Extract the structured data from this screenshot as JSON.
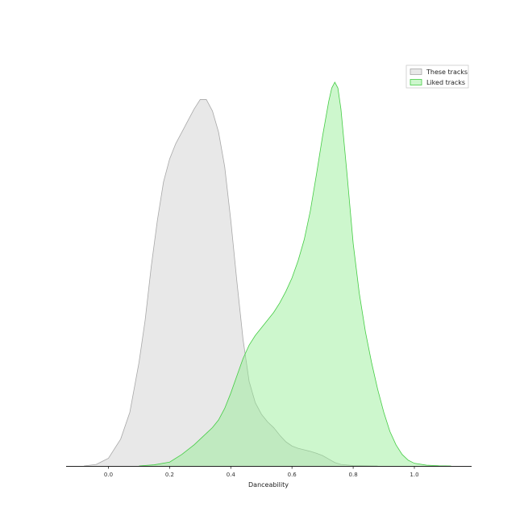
{
  "chart_data": {
    "type": "area",
    "xlabel": "Danceability",
    "ylabel": "",
    "xlim": [
      -0.15,
      1.18
    ],
    "ylim": [
      0,
      1.0
    ],
    "x_ticks": [
      0.0,
      0.2,
      0.4,
      0.6,
      0.8,
      1.0
    ],
    "x_tick_labels": [
      "0.0",
      "0.2",
      "0.4",
      "0.6",
      "0.8",
      "1.0"
    ],
    "grid": false,
    "legend_position": "top-right",
    "series": [
      {
        "name": "These tracks",
        "fill": "#e8e8e8",
        "stroke": "#a8a8a8",
        "points": [
          [
            -0.08,
            0.0
          ],
          [
            -0.04,
            0.004
          ],
          [
            0.0,
            0.02
          ],
          [
            0.04,
            0.07
          ],
          [
            0.07,
            0.14
          ],
          [
            0.1,
            0.27
          ],
          [
            0.12,
            0.38
          ],
          [
            0.14,
            0.52
          ],
          [
            0.16,
            0.64
          ],
          [
            0.18,
            0.74
          ],
          [
            0.2,
            0.8
          ],
          [
            0.22,
            0.84
          ],
          [
            0.24,
            0.87
          ],
          [
            0.26,
            0.9
          ],
          [
            0.28,
            0.93
          ],
          [
            0.3,
            0.955
          ],
          [
            0.32,
            0.955
          ],
          [
            0.34,
            0.925
          ],
          [
            0.36,
            0.87
          ],
          [
            0.38,
            0.78
          ],
          [
            0.4,
            0.64
          ],
          [
            0.42,
            0.48
          ],
          [
            0.44,
            0.33
          ],
          [
            0.46,
            0.22
          ],
          [
            0.48,
            0.165
          ],
          [
            0.5,
            0.135
          ],
          [
            0.52,
            0.115
          ],
          [
            0.54,
            0.1
          ],
          [
            0.56,
            0.08
          ],
          [
            0.58,
            0.063
          ],
          [
            0.6,
            0.052
          ],
          [
            0.62,
            0.046
          ],
          [
            0.64,
            0.042
          ],
          [
            0.66,
            0.038
          ],
          [
            0.68,
            0.033
          ],
          [
            0.7,
            0.027
          ],
          [
            0.72,
            0.018
          ],
          [
            0.74,
            0.009
          ],
          [
            0.76,
            0.004
          ],
          [
            0.8,
            0.001
          ],
          [
            0.88,
            0.0
          ]
        ]
      },
      {
        "name": "Liked tracks",
        "fill": "#90ee90",
        "stroke": "#44cc44",
        "points": [
          [
            0.1,
            0.0
          ],
          [
            0.15,
            0.003
          ],
          [
            0.2,
            0.01
          ],
          [
            0.24,
            0.03
          ],
          [
            0.28,
            0.055
          ],
          [
            0.32,
            0.085
          ],
          [
            0.34,
            0.1
          ],
          [
            0.36,
            0.12
          ],
          [
            0.38,
            0.15
          ],
          [
            0.4,
            0.19
          ],
          [
            0.42,
            0.235
          ],
          [
            0.44,
            0.28
          ],
          [
            0.46,
            0.315
          ],
          [
            0.48,
            0.34
          ],
          [
            0.5,
            0.36
          ],
          [
            0.52,
            0.38
          ],
          [
            0.54,
            0.4
          ],
          [
            0.56,
            0.425
          ],
          [
            0.58,
            0.455
          ],
          [
            0.6,
            0.49
          ],
          [
            0.62,
            0.535
          ],
          [
            0.64,
            0.59
          ],
          [
            0.66,
            0.665
          ],
          [
            0.68,
            0.76
          ],
          [
            0.7,
            0.86
          ],
          [
            0.72,
            0.95
          ],
          [
            0.73,
            0.985
          ],
          [
            0.74,
            1.0
          ],
          [
            0.75,
            0.985
          ],
          [
            0.76,
            0.93
          ],
          [
            0.78,
            0.76
          ],
          [
            0.8,
            0.58
          ],
          [
            0.82,
            0.45
          ],
          [
            0.84,
            0.35
          ],
          [
            0.86,
            0.27
          ],
          [
            0.88,
            0.2
          ],
          [
            0.9,
            0.14
          ],
          [
            0.92,
            0.09
          ],
          [
            0.94,
            0.055
          ],
          [
            0.96,
            0.03
          ],
          [
            0.98,
            0.015
          ],
          [
            1.0,
            0.007
          ],
          [
            1.04,
            0.002
          ],
          [
            1.08,
            0.0005
          ],
          [
            1.12,
            0.0
          ]
        ]
      }
    ]
  }
}
